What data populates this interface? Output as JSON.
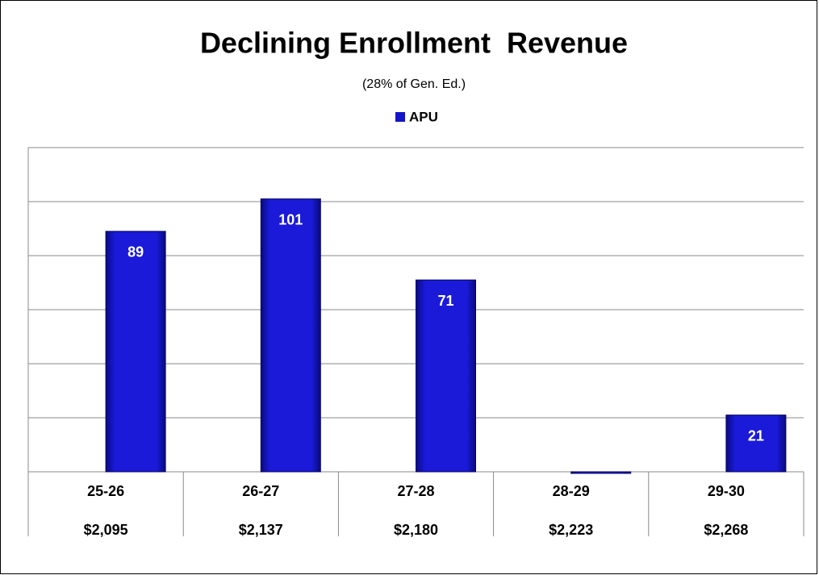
{
  "chart_data": {
    "type": "bar",
    "title": "Declining Enrollment  Revenue",
    "subtitle": "(28% of Gen. Ed.)",
    "categories": [
      "25-26",
      "26-27",
      "27-28",
      "28-29",
      "29-30"
    ],
    "category_revenue": [
      "$2,095",
      "$2,137",
      "$2,180",
      "$2,223",
      "$2,268"
    ],
    "series": [
      {
        "name": "APU",
        "color": "#1414c8",
        "values": [
          89,
          101,
          71,
          0,
          21
        ],
        "value_labels": [
          "89",
          "101",
          "71",
          null,
          "21"
        ]
      }
    ],
    "ylim": [
      0,
      120
    ],
    "yticks": [
      0,
      20,
      40,
      60,
      80,
      100,
      120
    ],
    "grid": true,
    "legend": "top"
  }
}
